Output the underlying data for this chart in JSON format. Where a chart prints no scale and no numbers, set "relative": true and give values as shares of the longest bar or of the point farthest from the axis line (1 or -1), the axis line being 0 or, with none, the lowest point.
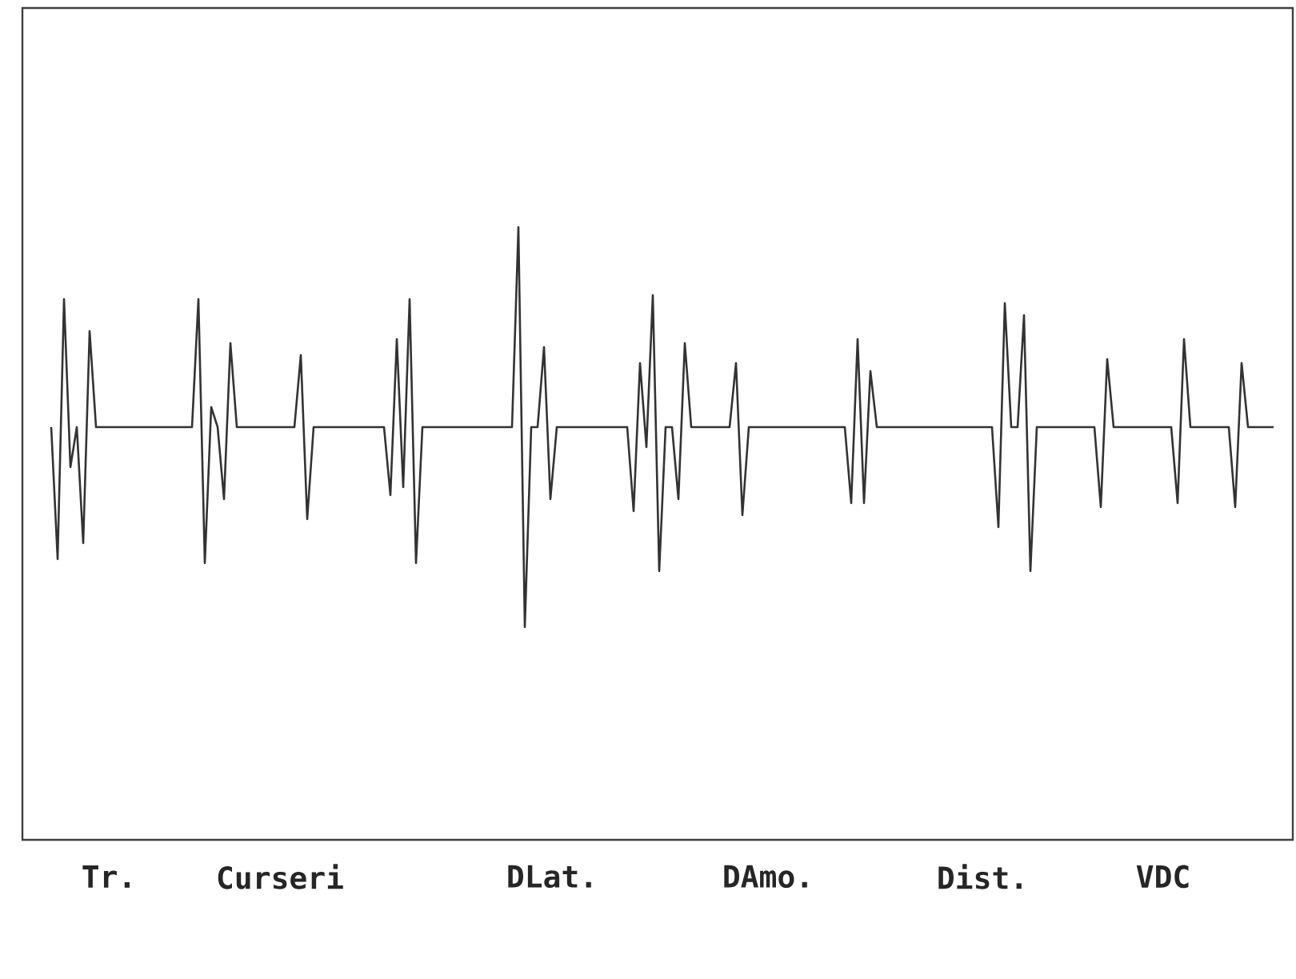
{
  "chart_data": {
    "type": "line",
    "relative": true,
    "legend": false,
    "marker": "none",
    "line_style": "solid",
    "annotations": [
      "Tr.",
      "Curseri",
      "DLat.",
      "DAmo.",
      "Dist.",
      "VDC"
    ],
    "categories": [
      null,
      null,
      null,
      null,
      null,
      null,
      null,
      null,
      null,
      null,
      null,
      null,
      null,
      null,
      null,
      null,
      null,
      null,
      null,
      null,
      null,
      null,
      null,
      null,
      null,
      null,
      null,
      null,
      null,
      null,
      null,
      null,
      null,
      null,
      null,
      null,
      null,
      null,
      null,
      null,
      null,
      null,
      null,
      null,
      null,
      null,
      null,
      null,
      null,
      null,
      null,
      null,
      null,
      null,
      null,
      null,
      null,
      null,
      null,
      null,
      null,
      null,
      null,
      null,
      null,
      null,
      null,
      null,
      null,
      null,
      null,
      null,
      null,
      null,
      null,
      null,
      null,
      null,
      null,
      null,
      null,
      null,
      null,
      null,
      null,
      null,
      null,
      null,
      null,
      null,
      null,
      null,
      null,
      null,
      null,
      null,
      null,
      null,
      null,
      null,
      null,
      null,
      null,
      null,
      null,
      null,
      null,
      null,
      null,
      null,
      null,
      null,
      null,
      null,
      null,
      null,
      null,
      null,
      null,
      null,
      null,
      null,
      null,
      null,
      null,
      null,
      null,
      null,
      null,
      null,
      null,
      null,
      null,
      null,
      null,
      null,
      null,
      null,
      null,
      null,
      null,
      null,
      null,
      null,
      null,
      null,
      null,
      null,
      null,
      null,
      null,
      null,
      null,
      null,
      null,
      null,
      null,
      null,
      null,
      null,
      null,
      null,
      null,
      null,
      null,
      null,
      null,
      null,
      null,
      null,
      null,
      null,
      null,
      null,
      null,
      null,
      null,
      null,
      null,
      null,
      null,
      null,
      null,
      null,
      null,
      null,
      null,
      null,
      null,
      null,
      null,
      null
    ],
    "series": [
      {
        "color": "#333333",
        "values": [
          0.5,
          0.17,
          0.82,
          0.4,
          0.5,
          0.21,
          0.74,
          0.5,
          0.5,
          0.5,
          0.5,
          0.5,
          0.5,
          0.5,
          0.5,
          0.5,
          0.5,
          0.5,
          0.5,
          0.5,
          0.5,
          0.5,
          0.5,
          0.82,
          0.16,
          0.55,
          0.5,
          0.32,
          0.71,
          0.5,
          0.5,
          0.5,
          0.5,
          0.5,
          0.5,
          0.5,
          0.5,
          0.5,
          0.5,
          0.68,
          0.27,
          0.5,
          0.5,
          0.5,
          0.5,
          0.5,
          0.5,
          0.5,
          0.5,
          0.5,
          0.5,
          0.5,
          0.5,
          0.33,
          0.72,
          0.35,
          0.82,
          0.16,
          0.5,
          0.5,
          0.5,
          0.5,
          0.5,
          0.5,
          0.5,
          0.5,
          0.5,
          0.5,
          0.5,
          0.5,
          0.5,
          0.5,
          0.5,
          1,
          0,
          0.5,
          0.5,
          0.7,
          0.32,
          0.5,
          0.5,
          0.5,
          0.5,
          0.5,
          0.5,
          0.5,
          0.5,
          0.5,
          0.5,
          0.5,
          0.5,
          0.29,
          0.66,
          0.45,
          0.83,
          0.14,
          0.5,
          0.5,
          0.32,
          0.71,
          0.5,
          0.5,
          0.5,
          0.5,
          0.5,
          0.5,
          0.5,
          0.66,
          0.28,
          0.5,
          0.5,
          0.5,
          0.5,
          0.5,
          0.5,
          0.5,
          0.5,
          0.5,
          0.5,
          0.5,
          0.5,
          0.5,
          0.5,
          0.5,
          0.5,
          0.31,
          0.72,
          0.31,
          0.64,
          0.5,
          0.5,
          0.5,
          0.5,
          0.5,
          0.5,
          0.5,
          0.5,
          0.5,
          0.5,
          0.5,
          0.5,
          0.5,
          0.5,
          0.5,
          0.5,
          0.5,
          0.5,
          0.5,
          0.25,
          0.81,
          0.5,
          0.5,
          0.78,
          0.14,
          0.5,
          0.5,
          0.5,
          0.5,
          0.5,
          0.5,
          0.5,
          0.5,
          0.5,
          0.5,
          0.3,
          0.67,
          0.5,
          0.5,
          0.5,
          0.5,
          0.5,
          0.5,
          0.5,
          0.5,
          0.5,
          0.5,
          0.31,
          0.72,
          0.5,
          0.5,
          0.5,
          0.5,
          0.5,
          0.5,
          0.5,
          0.3,
          0.66,
          0.5,
          0.5,
          0.5,
          0.5,
          0.5
        ]
      }
    ]
  }
}
